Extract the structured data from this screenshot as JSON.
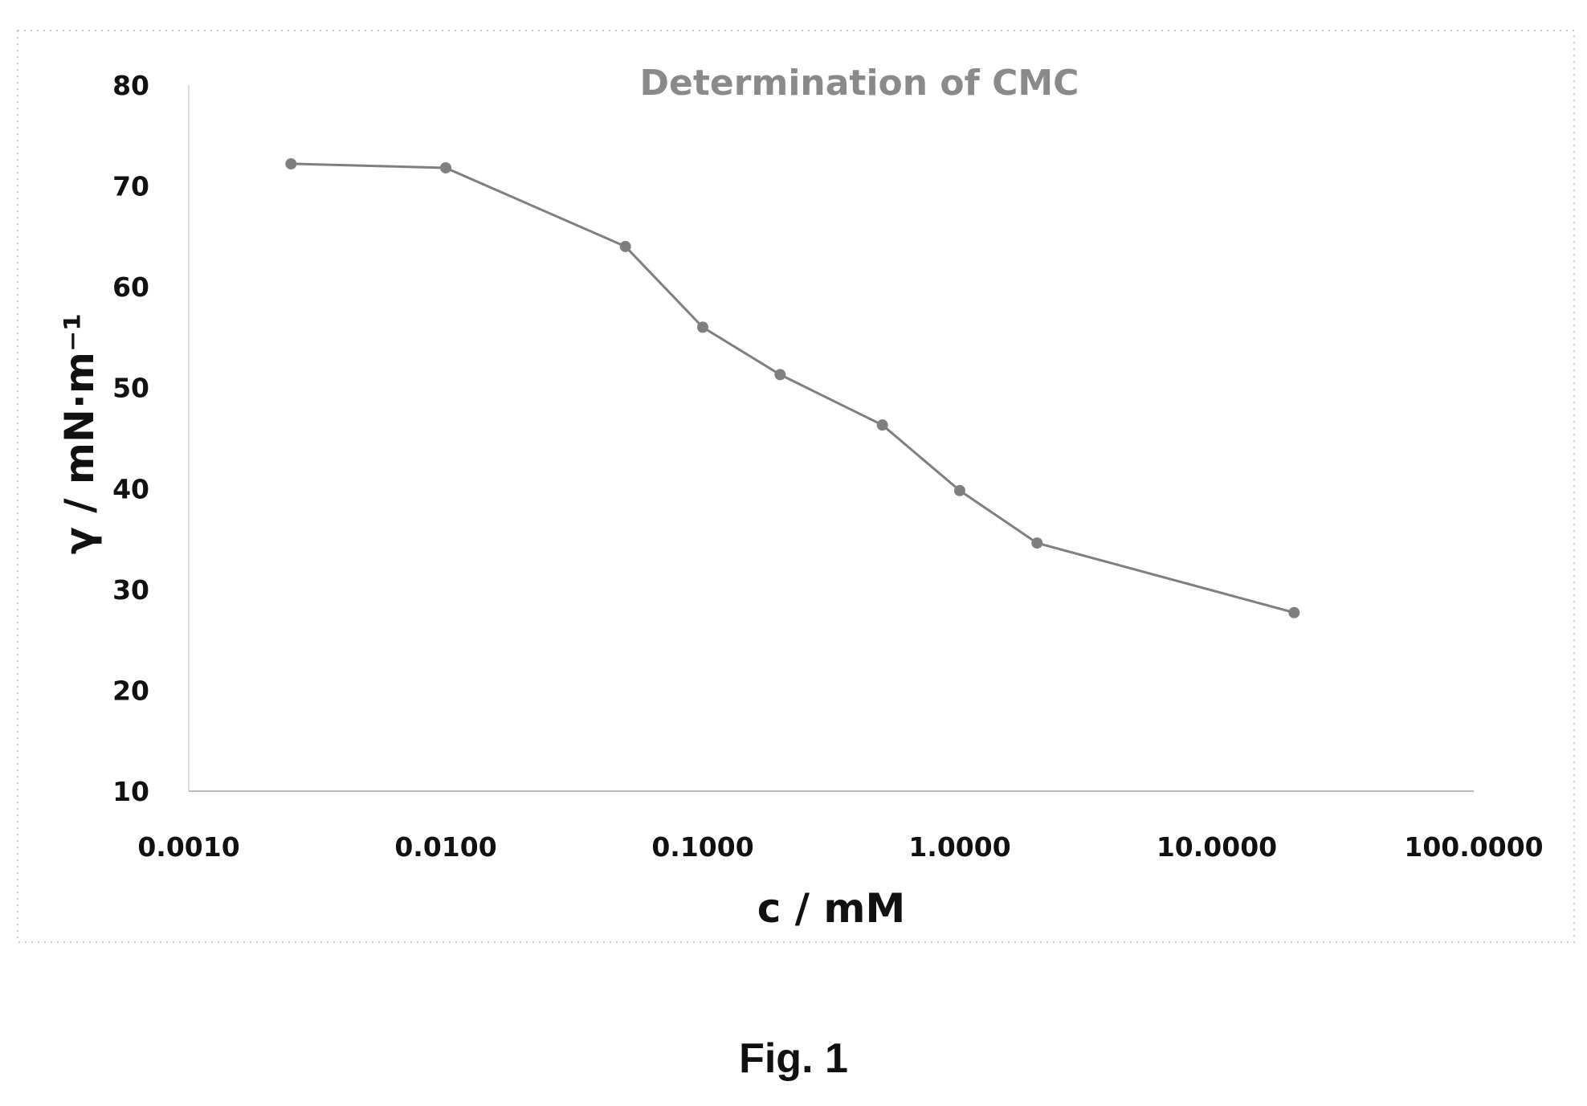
{
  "chart_data": {
    "type": "scatter",
    "title": "Determination of CMC",
    "xlabel": "c / mM",
    "ylabel": "γ / mN·m⁻¹",
    "x_scale": "log",
    "xlim": [
      0.001,
      100
    ],
    "ylim": [
      10,
      80
    ],
    "x_ticks": [
      "0.0010",
      "0.0100",
      "0.1000",
      "1.0000",
      "10.0000",
      "100.0000"
    ],
    "y_ticks": [
      "10",
      "20",
      "30",
      "40",
      "50",
      "60",
      "70",
      "80"
    ],
    "grid": false,
    "legend": "none",
    "series": [
      {
        "x": [
          0.0025,
          0.01,
          0.05,
          0.1,
          0.2,
          0.5,
          1.0,
          2.0,
          20.0
        ],
        "y": [
          72.2,
          71.8,
          64.0,
          56.0,
          51.3,
          46.3,
          39.8,
          34.6,
          27.7
        ],
        "color": "#7f7f7f"
      }
    ]
  },
  "caption": "Fig. 1"
}
